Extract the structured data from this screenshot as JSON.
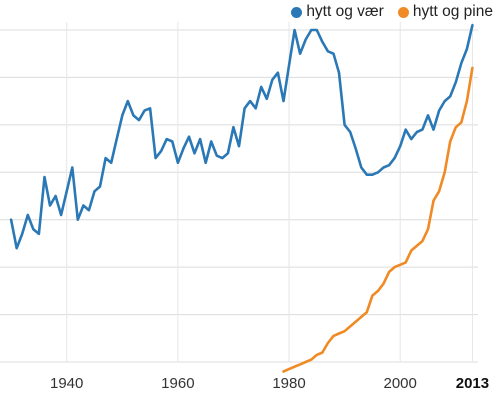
{
  "chart_data": {
    "type": "line",
    "title": "",
    "xlabel": "",
    "ylabel": "",
    "xlim": [
      1928,
      2014
    ],
    "ylim": [
      0,
      7
    ],
    "grid": true,
    "legend_position": "top-right",
    "x_ticks": [
      {
        "value": 1940,
        "label": "1940",
        "bold": false
      },
      {
        "value": 1960,
        "label": "1960",
        "bold": false
      },
      {
        "value": 1980,
        "label": "1980",
        "bold": false
      },
      {
        "value": 2000,
        "label": "2000",
        "bold": false
      },
      {
        "value": 2013,
        "label": "2013",
        "bold": true
      }
    ],
    "series": [
      {
        "name": "hytt og vær",
        "color": "#2a78b5",
        "x": [
          1930,
          1931,
          1932,
          1933,
          1934,
          1935,
          1936,
          1937,
          1938,
          1939,
          1940,
          1941,
          1942,
          1943,
          1944,
          1945,
          1946,
          1947,
          1948,
          1949,
          1950,
          1951,
          1952,
          1953,
          1954,
          1955,
          1956,
          1957,
          1958,
          1959,
          1960,
          1961,
          1962,
          1963,
          1964,
          1965,
          1966,
          1967,
          1968,
          1969,
          1970,
          1971,
          1972,
          1973,
          1974,
          1975,
          1976,
          1977,
          1978,
          1979,
          1980,
          1981,
          1982,
          1983,
          1984,
          1985,
          1986,
          1987,
          1988,
          1989,
          1990,
          1991,
          1992,
          1993,
          1994,
          1995,
          1996,
          1997,
          1998,
          1999,
          2000,
          2001,
          2002,
          2003,
          2004,
          2005,
          2006,
          2007,
          2008,
          2009,
          2010,
          2011,
          2012,
          2013
        ],
        "y": [
          3.0,
          2.4,
          2.7,
          3.1,
          2.8,
          2.7,
          3.9,
          3.3,
          3.5,
          3.1,
          3.6,
          4.1,
          3.0,
          3.3,
          3.2,
          3.6,
          3.7,
          4.3,
          4.2,
          4.7,
          5.2,
          5.5,
          5.2,
          5.1,
          5.3,
          5.35,
          4.3,
          4.45,
          4.7,
          4.65,
          4.2,
          4.5,
          4.75,
          4.4,
          4.7,
          4.2,
          4.65,
          4.35,
          4.3,
          4.4,
          4.95,
          4.55,
          5.35,
          5.5,
          5.35,
          5.8,
          5.55,
          5.95,
          6.1,
          5.5,
          6.25,
          7.0,
          6.5,
          6.8,
          7.0,
          7.0,
          6.75,
          6.55,
          6.5,
          6.1,
          5.0,
          4.85,
          4.5,
          4.1,
          3.95,
          3.95,
          4.0,
          4.1,
          4.15,
          4.3,
          4.55,
          4.9,
          4.7,
          4.85,
          4.9,
          5.2,
          4.9,
          5.3,
          5.5,
          5.6,
          5.9,
          6.3,
          6.6,
          7.1
        ]
      },
      {
        "name": "hytt og pine",
        "color": "#f08a24",
        "x": [
          1979,
          1980,
          1981,
          1982,
          1983,
          1984,
          1985,
          1986,
          1987,
          1988,
          1989,
          1990,
          1991,
          1992,
          1993,
          1994,
          1995,
          1996,
          1997,
          1998,
          1999,
          2000,
          2001,
          2002,
          2003,
          2004,
          2005,
          2006,
          2007,
          2008,
          2009,
          2010,
          2011,
          2012,
          2013
        ],
        "y": [
          -0.2,
          -0.15,
          -0.1,
          -0.05,
          0.0,
          0.05,
          0.15,
          0.2,
          0.4,
          0.55,
          0.6,
          0.65,
          0.75,
          0.85,
          0.95,
          1.05,
          1.4,
          1.5,
          1.65,
          1.9,
          2.0,
          2.05,
          2.1,
          2.35,
          2.45,
          2.55,
          2.8,
          3.4,
          3.6,
          4.0,
          4.65,
          4.95,
          5.05,
          5.5,
          6.2
        ]
      }
    ]
  }
}
